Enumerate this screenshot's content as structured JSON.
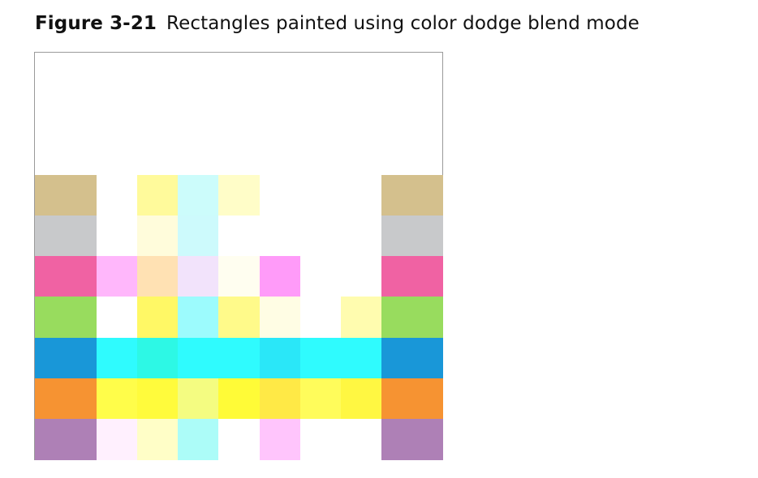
{
  "caption": {
    "label": "Figure 3-21",
    "text": "Rectangles painted using color dodge blend mode"
  },
  "figure": {
    "rows": [
      [
        "#d4c08d",
        "#ffffff",
        "#fffa9b",
        "#ccfcfb",
        "#fffdc8",
        "#ffffff",
        "#ffffff",
        "#ffffff",
        "#d4c08d"
      ],
      [
        "#c8c9cb",
        "#ffffff",
        "#fffcdb",
        "#cdfafc",
        "#ffffff",
        "#ffffff",
        "#ffffff",
        "#ffffff",
        "#c8c9cb"
      ],
      [
        "#f062a3",
        "#ffb7fb",
        "#ffe1b3",
        "#f2e3fb",
        "#fffef0",
        "#ff9bf9",
        "#ffffff",
        "#ffffff",
        "#f062a3"
      ],
      [
        "#98dc5e",
        "#ffffff",
        "#fff865",
        "#9cfbfd",
        "#fffa8a",
        "#fffde4",
        "#ffffff",
        "#fffcaf",
        "#98dc5e"
      ],
      [
        "#1997d8",
        "#2ffbfe",
        "#2df8e5",
        "#2ffbfe",
        "#2ffbfe",
        "#2ae7f8",
        "#2ffbfe",
        "#2ffbfe",
        "#1997d8"
      ],
      [
        "#f69332",
        "#fffd4a",
        "#fffb3c",
        "#f4fc81",
        "#fffb37",
        "#ffe946",
        "#fffc5b",
        "#fff742",
        "#f69332"
      ],
      [
        "#ae80b6",
        "#fff0fe",
        "#fffec7",
        "#acfcf8",
        "#ffffff",
        "#ffc5fc",
        "#ffffff",
        "#ffffff",
        "#ae80b6"
      ]
    ]
  }
}
